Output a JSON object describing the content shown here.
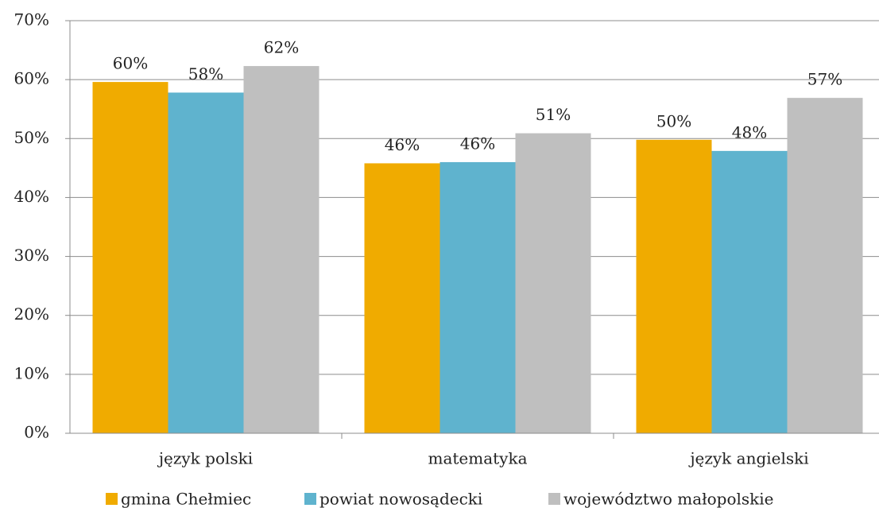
{
  "chart_data": {
    "type": "bar",
    "categories": [
      "język polski",
      "matematyka",
      "język angielski"
    ],
    "series": [
      {
        "name": "gmina Chełmiec",
        "color": "#F0AB00",
        "values": [
          59.6,
          45.8,
          49.8
        ],
        "value_labels": [
          "60%",
          "46%",
          "50%"
        ]
      },
      {
        "name": "powiat nowosądecki",
        "color": "#5FB3CE",
        "values": [
          57.8,
          46.0,
          47.9
        ],
        "value_labels": [
          "58%",
          "46%",
          "48%"
        ]
      },
      {
        "name": "województwo małopolskie",
        "color": "#BFBFBF",
        "values": [
          62.3,
          50.9,
          56.9
        ],
        "value_labels": [
          "62%",
          "51%",
          "57%"
        ]
      }
    ],
    "ylim": [
      0,
      70
    ],
    "yticks": [
      {
        "value": 0,
        "label": "0%"
      },
      {
        "value": 10,
        "label": "10%"
      },
      {
        "value": 20,
        "label": "20%"
      },
      {
        "value": 30,
        "label": "30%"
      },
      {
        "value": 40,
        "label": "40%"
      },
      {
        "value": 50,
        "label": "50%"
      },
      {
        "value": 60,
        "label": "60%"
      },
      {
        "value": 70,
        "label": "70%"
      }
    ],
    "grid": true,
    "legend": "bottom"
  }
}
